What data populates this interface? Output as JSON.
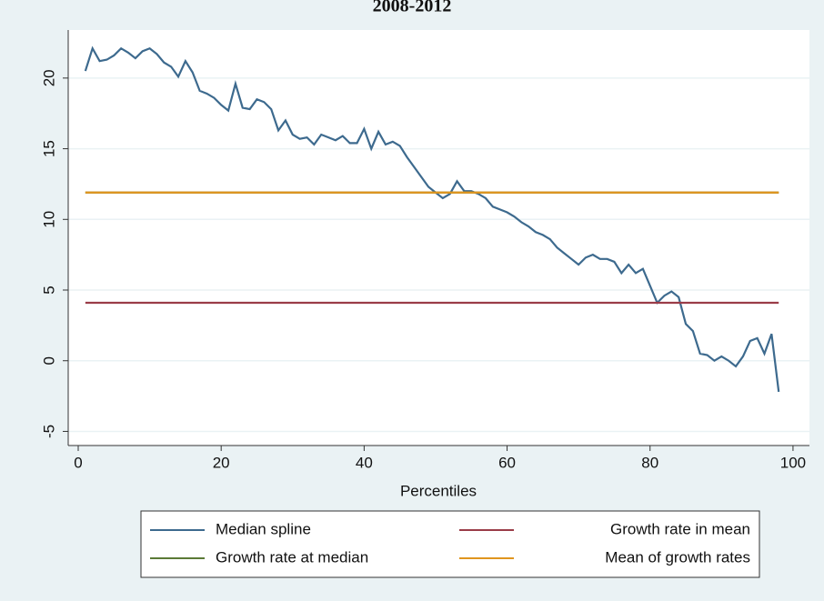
{
  "chart_data": {
    "type": "line",
    "title": "2008-2012",
    "xlabel": "Percentiles",
    "xlim": [
      -1.4,
      102.3
    ],
    "ylim": [
      -6.0,
      23.4
    ],
    "xticks": [
      0,
      20,
      40,
      60,
      80,
      100
    ],
    "yticks": [
      -5,
      0,
      5,
      10,
      15,
      20
    ],
    "grid": true,
    "legend_position": "bottom",
    "series": [
      {
        "name": "Median spline",
        "color": "#3d6a8e",
        "x": [
          1,
          2,
          3,
          4,
          5,
          6,
          7,
          8,
          9,
          10,
          11,
          12,
          13,
          14,
          15,
          16,
          17,
          18,
          19,
          20,
          21,
          22,
          23,
          24,
          25,
          26,
          27,
          28,
          29,
          30,
          31,
          32,
          33,
          34,
          35,
          36,
          37,
          38,
          39,
          40,
          41,
          42,
          43,
          44,
          45,
          46,
          47,
          48,
          49,
          50,
          51,
          52,
          53,
          54,
          55,
          56,
          57,
          58,
          59,
          60,
          61,
          62,
          63,
          64,
          65,
          66,
          67,
          68,
          69,
          70,
          71,
          72,
          73,
          74,
          75,
          76,
          77,
          78,
          79,
          80,
          81,
          82,
          83,
          84,
          85,
          86,
          87,
          88,
          89,
          90,
          91,
          92,
          93,
          94,
          95,
          96,
          97,
          98
        ],
        "values": [
          20.5,
          22.1,
          21.2,
          21.3,
          21.6,
          22.1,
          21.8,
          21.4,
          21.9,
          22.1,
          21.7,
          21.1,
          20.8,
          20.1,
          21.2,
          20.4,
          19.1,
          18.9,
          18.6,
          18.1,
          17.7,
          19.6,
          17.9,
          17.8,
          18.5,
          18.3,
          17.8,
          16.3,
          17.0,
          16.0,
          15.7,
          15.8,
          15.3,
          16.0,
          15.8,
          15.6,
          15.9,
          15.4,
          15.4,
          16.4,
          15.0,
          16.2,
          15.3,
          15.5,
          15.2,
          14.4,
          13.7,
          13.0,
          12.3,
          11.9,
          11.5,
          11.8,
          12.7,
          12.0,
          12.0,
          11.8,
          11.5,
          10.9,
          10.7,
          10.5,
          10.2,
          9.8,
          9.5,
          9.1,
          8.9,
          8.6,
          8.0,
          7.6,
          7.2,
          6.8,
          7.3,
          7.5,
          7.2,
          7.2,
          7.0,
          6.2,
          6.8,
          6.2,
          6.5,
          5.3,
          4.1,
          4.6,
          4.9,
          4.5,
          2.6,
          2.1,
          0.5,
          0.4,
          0.0,
          0.3,
          0.0,
          -0.4,
          0.3,
          1.4,
          1.6,
          0.5,
          1.9,
          -2.2
        ]
      },
      {
        "name": "Growth rate in mean",
        "color": "#9a3c48",
        "x": [
          1,
          98
        ],
        "values": [
          4.1,
          4.1
        ]
      },
      {
        "name": "Growth rate at median",
        "color": "#5b7a36",
        "x": [
          1,
          98
        ],
        "values": [
          11.9,
          11.9
        ]
      },
      {
        "name": "Mean of growth rates",
        "color": "#e0951e",
        "x": [
          1,
          98
        ],
        "values": [
          11.9,
          11.9
        ]
      }
    ]
  }
}
